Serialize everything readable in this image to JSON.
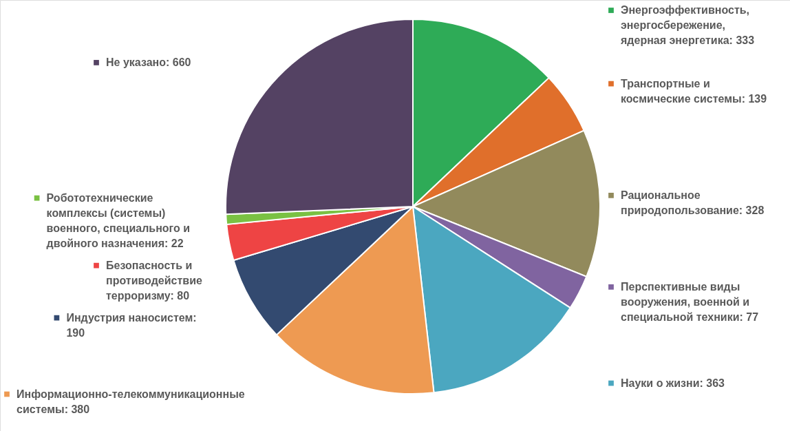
{
  "chart_data": {
    "type": "pie",
    "categories": [
      "Энергоэффективность, энергосбережение, ядерная энергетика: 333",
      "Транспортные и космические системы: 139",
      "Рациональное природопользование: 328",
      "Перспективные виды вооружения, военной и специальной техники: 77",
      "Науки о жизни: 363",
      "Информационно-телекоммуникационные системы: 380",
      "Индустрия наносистем: 190",
      "Безопасность и противодействие терроризму: 80",
      "Робототехнические комплексы (системы) военного, специального и двойного назначения: 22",
      "Не указано: 660"
    ],
    "values": [
      333,
      139,
      328,
      77,
      363,
      380,
      190,
      80,
      22,
      660
    ],
    "colors": [
      "#2eab57",
      "#e06f2b",
      "#928a5c",
      "#8064a0",
      "#4ba7c0",
      "#ee9a52",
      "#334a70",
      "#ee4444",
      "#7ac143",
      "#544263"
    ],
    "legend": "bottom left"
  }
}
